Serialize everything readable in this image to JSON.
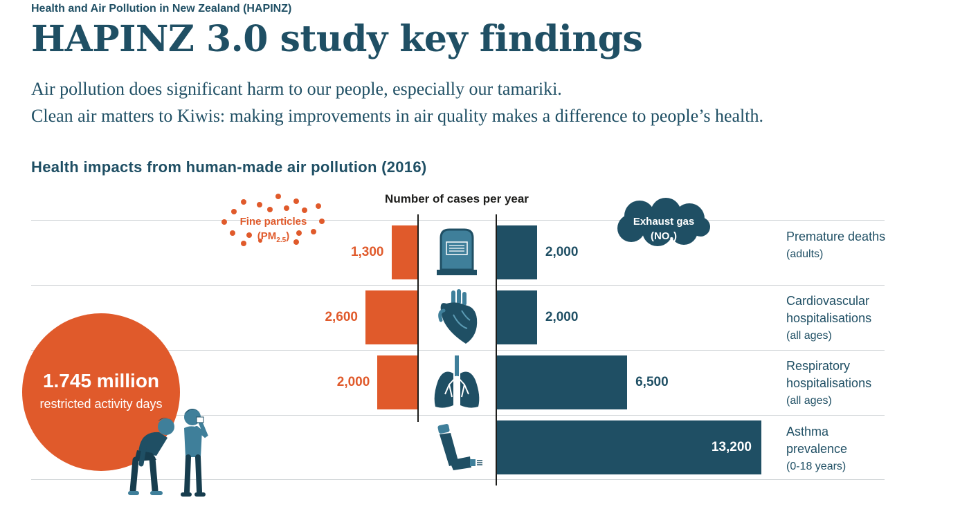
{
  "header": {
    "eyebrow": "Health and Air Pollution in New Zealand (HAPINZ)",
    "title": "HAPINZ 3.0 study key findings",
    "line1": "Air pollution does significant harm to our people, especially our tamariki.",
    "line2": "Clean air matters to Kiwis: making improvements in air quality makes a difference to people’s health."
  },
  "section_title": "Health impacts from human-made air pollution (2016)",
  "cases_header": "Number of cases per year",
  "legend": {
    "pm_line1": "Fine particles",
    "pm_line2_pre": "(PM",
    "pm_sub": "2.5",
    "pm_post": ")",
    "no2_line1": "Exhaust gas",
    "no2_line2_pre": "(NO",
    "no2_sub": "2",
    "no2_post": ")"
  },
  "callout": {
    "value": "1.745 million",
    "label": "restricted activity days"
  },
  "colors": {
    "pm25": "#e05a2b",
    "no2": "#1f4f64",
    "text": "#1f4f64"
  },
  "chart_data": {
    "type": "bar",
    "orientation": "horizontal-diverging",
    "categories": [
      "Premature deaths",
      "Cardiovascular hospitalisations",
      "Respiratory hospitalisations",
      "Asthma prevalence"
    ],
    "category_notes": [
      "(adults)",
      "(all ages)",
      "(all ages)",
      "(0-18 years)"
    ],
    "category_icons": [
      "gravestone-icon",
      "heart-icon",
      "lungs-icon",
      "inhaler-icon"
    ],
    "series": [
      {
        "name": "Fine particles (PM2.5)",
        "values": [
          1300,
          2600,
          2000,
          null
        ],
        "labels": [
          "1,300",
          "2,600",
          "2,000",
          ""
        ]
      },
      {
        "name": "Exhaust gas (NO2)",
        "values": [
          2000,
          2000,
          6500,
          13200
        ],
        "labels": [
          "2,000",
          "2,000",
          "6,500",
          "13,200"
        ]
      }
    ],
    "title": "Health impacts from human-made air pollution (2016)",
    "xlabel": "Number of cases per year",
    "legend_position": "top",
    "grid": false
  }
}
